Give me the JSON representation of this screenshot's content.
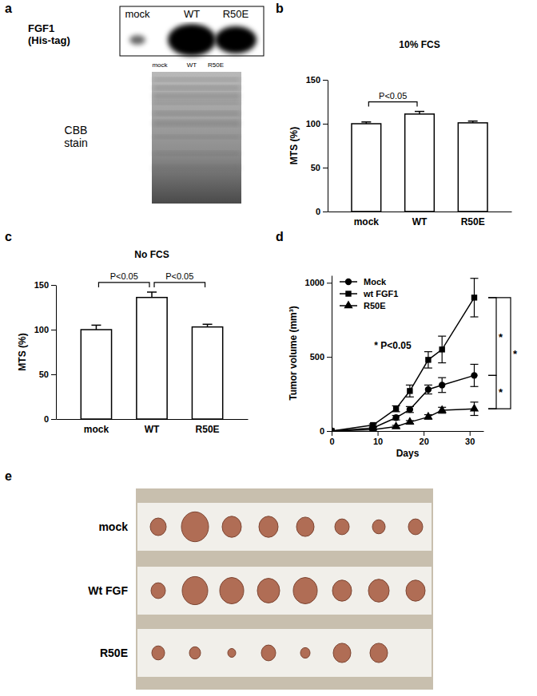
{
  "panel_labels": [
    "a",
    "b",
    "c",
    "d",
    "e"
  ],
  "blot": {
    "label": [
      "FGF1",
      "(His-tag)"
    ],
    "lanes": [
      "mock",
      "WT",
      "R50E"
    ]
  },
  "stain": {
    "label": [
      "CBB",
      "stain"
    ],
    "lanes": [
      "mock",
      "WT",
      "R50E"
    ]
  },
  "tumor_photo": {
    "rows": [
      "mock",
      "Wt FGF",
      "R50E"
    ]
  },
  "chart_data": [
    {
      "type": "bar",
      "title": "10% FCS",
      "y_label": "MTS (%)",
      "categories": [
        "mock",
        "WT",
        "R50E"
      ],
      "values": [
        100,
        111,
        101
      ],
      "errors": [
        2,
        3,
        2
      ],
      "color": "#ffffff",
      "ylim": [
        0,
        150
      ],
      "yticks": [
        0,
        50,
        100,
        150
      ],
      "annotations": [
        {
          "text": "P<0.05",
          "between": [
            "mock",
            "WT"
          ]
        }
      ]
    },
    {
      "type": "bar",
      "title": "No FCS",
      "y_label": "MTS (%)",
      "categories": [
        "mock",
        "WT",
        "R50E"
      ],
      "values": [
        100,
        136,
        103
      ],
      "errors": [
        5,
        6,
        3
      ],
      "color": "#ffffff",
      "ylim": [
        0,
        150
      ],
      "yticks": [
        0,
        50,
        100,
        150
      ],
      "annotations": [
        {
          "text": "P<0.05",
          "between": [
            "mock",
            "WT"
          ]
        },
        {
          "text": "P<0.05",
          "between": [
            "WT",
            "R50E"
          ]
        }
      ]
    },
    {
      "type": "line",
      "x_label": "Days",
      "y_label": "Tumor volume (mm³)",
      "x": [
        0,
        9,
        14,
        17,
        21,
        24,
        31
      ],
      "xlim": [
        0,
        33
      ],
      "xticks": [
        0,
        10,
        20,
        30
      ],
      "ylim": [
        0,
        1050
      ],
      "yticks": [
        0,
        500,
        1000
      ],
      "legend": "upper left",
      "series": [
        {
          "name": "Mock",
          "color": "#000000",
          "marker": "circle",
          "values": [
            0,
            20,
            90,
            145,
            280,
            310,
            375
          ],
          "errors": [
            0,
            5,
            15,
            20,
            30,
            50,
            75
          ]
        },
        {
          "name": "wt FGF1",
          "color": "#000000",
          "marker": "square",
          "values": [
            0,
            40,
            150,
            270,
            480,
            550,
            900
          ],
          "errors": [
            0,
            8,
            20,
            40,
            55,
            90,
            130
          ]
        },
        {
          "name": "R50E",
          "color": "#000000",
          "marker": "triangle",
          "values": [
            0,
            10,
            30,
            60,
            95,
            140,
            150
          ],
          "errors": [
            0,
            3,
            8,
            10,
            15,
            20,
            45
          ]
        }
      ],
      "annotations": [
        {
          "text": "* P<0.05"
        },
        {
          "text": "*",
          "between": [
            "wt FGF1",
            "Mock"
          ]
        },
        {
          "text": "*",
          "between": [
            "wt FGF1",
            "R50E"
          ]
        },
        {
          "text": "*",
          "between": [
            "Mock",
            "R50E"
          ]
        }
      ]
    }
  ]
}
